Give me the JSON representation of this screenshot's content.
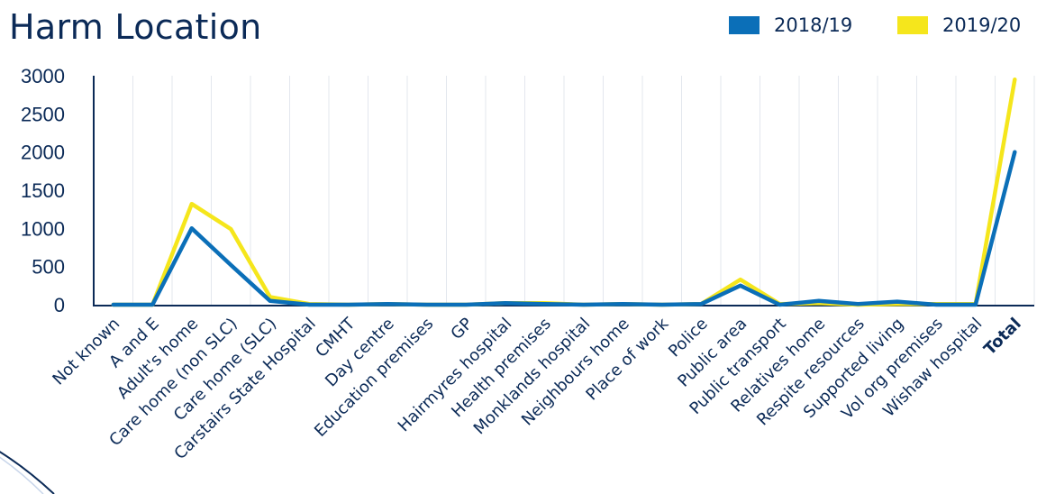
{
  "chart_data": {
    "type": "line",
    "title": "Harm Location",
    "xlabel": "",
    "ylabel": "",
    "ylim": [
      0,
      3000
    ],
    "yticks": [
      0,
      500,
      1000,
      1500,
      2000,
      2500,
      3000
    ],
    "grid": true,
    "legend_position": "top-right",
    "categories": [
      "Not known",
      "A and E",
      "Adult's home",
      "Care home (non SLC)",
      "Care home (SLC)",
      "Carstairs State Hospital",
      "CMHT",
      "Day centre",
      "Education premises",
      "GP",
      "Hairmyres hospital",
      "Health premises",
      "Monklands hospital",
      "Neighbours home",
      "Place of work",
      "Police",
      "Public area",
      "Public transport",
      "Relatives home",
      "Respite resources",
      "Supported living",
      "Vol org premises",
      "Wishaw hospital",
      "Total"
    ],
    "bold_category": "Total",
    "series": [
      {
        "name": "2018/19",
        "color": "#0b6fb8",
        "values": [
          0,
          0,
          1000,
          520,
          50,
          0,
          0,
          10,
          0,
          0,
          20,
          10,
          0,
          10,
          0,
          10,
          250,
          0,
          50,
          10,
          40,
          0,
          0,
          2000
        ]
      },
      {
        "name": "2019/20",
        "color": "#f5e61c",
        "values": [
          0,
          0,
          1320,
          990,
          100,
          10,
          0,
          10,
          0,
          0,
          20,
          20,
          0,
          10,
          0,
          10,
          330,
          10,
          20,
          0,
          10,
          10,
          10,
          2950
        ]
      }
    ]
  },
  "colors": {
    "title": "#0b2a57",
    "axis": "#0b2a57",
    "grid": "#e3e7ee",
    "tick_text": "#0b2a57"
  }
}
